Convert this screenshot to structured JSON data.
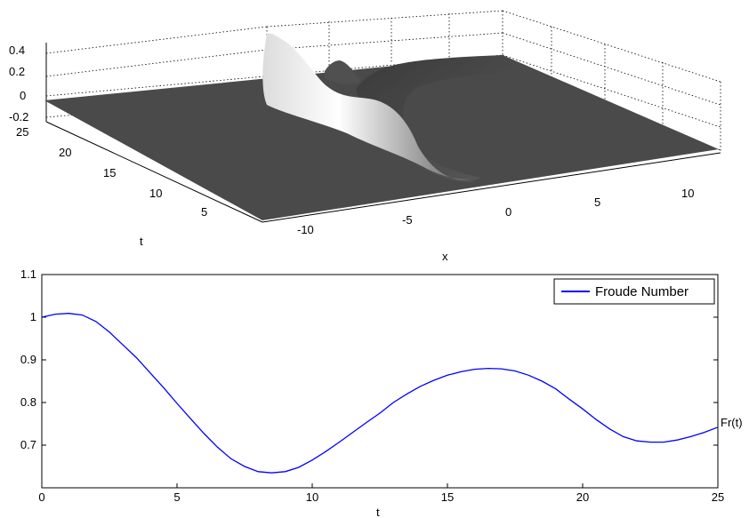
{
  "chart_data": [
    {
      "type": "surface",
      "xlabel": "x",
      "ylabel": "t",
      "x_ticks": [
        "-10",
        "-5",
        "0",
        "5",
        "10"
      ],
      "t_ticks": [
        "5",
        "10",
        "15",
        "20",
        "25"
      ],
      "z_ticks": [
        "0.4",
        "0.2",
        "0",
        "-0.2"
      ],
      "xlim": [
        -13,
        13
      ],
      "tlim": [
        0,
        25
      ],
      "zlim": [
        -0.2,
        0.4
      ],
      "grid": true,
      "colormap": "gray",
      "colors": {
        "surface_dark": "#4a4a4a",
        "surface_light": "#f2f2f2"
      }
    },
    {
      "type": "line",
      "title": "",
      "xlabel": "t",
      "ylabel": "Fr(t)",
      "xlim": [
        0,
        25
      ],
      "ylim": [
        0.6,
        1.1
      ],
      "x_ticks": [
        "0",
        "5",
        "10",
        "15",
        "20",
        "25"
      ],
      "y_ticks": [
        "0.7",
        "0.8",
        "0.9",
        "1",
        "1.1"
      ],
      "grid": false,
      "legend": {
        "position": "top-right",
        "entries": [
          "Froude Number"
        ]
      },
      "series": [
        {
          "name": "Froude Number",
          "color": "#0000ff",
          "x": [
            0,
            0.5,
            1,
            1.5,
            2,
            2.5,
            3,
            3.5,
            4,
            4.5,
            5,
            5.5,
            6,
            6.5,
            7,
            7.5,
            8,
            8.5,
            9,
            9.5,
            10,
            10.5,
            11,
            11.5,
            12,
            12.5,
            13,
            13.5,
            14,
            14.5,
            15,
            15.5,
            16,
            16.5,
            17,
            17.5,
            18,
            18.5,
            19,
            19.5,
            20,
            20.5,
            21,
            21.5,
            22,
            22.5,
            23,
            23.5,
            24,
            24.5,
            25
          ],
          "y": [
            1.0,
            1.007,
            1.009,
            1.005,
            0.99,
            0.965,
            0.935,
            0.905,
            0.87,
            0.835,
            0.798,
            0.762,
            0.727,
            0.695,
            0.668,
            0.65,
            0.638,
            0.635,
            0.638,
            0.648,
            0.665,
            0.685,
            0.707,
            0.73,
            0.753,
            0.775,
            0.8,
            0.82,
            0.838,
            0.852,
            0.864,
            0.872,
            0.878,
            0.88,
            0.879,
            0.874,
            0.864,
            0.85,
            0.832,
            0.808,
            0.785,
            0.76,
            0.738,
            0.72,
            0.71,
            0.707,
            0.707,
            0.712,
            0.72,
            0.73,
            0.742
          ]
        }
      ]
    }
  ]
}
